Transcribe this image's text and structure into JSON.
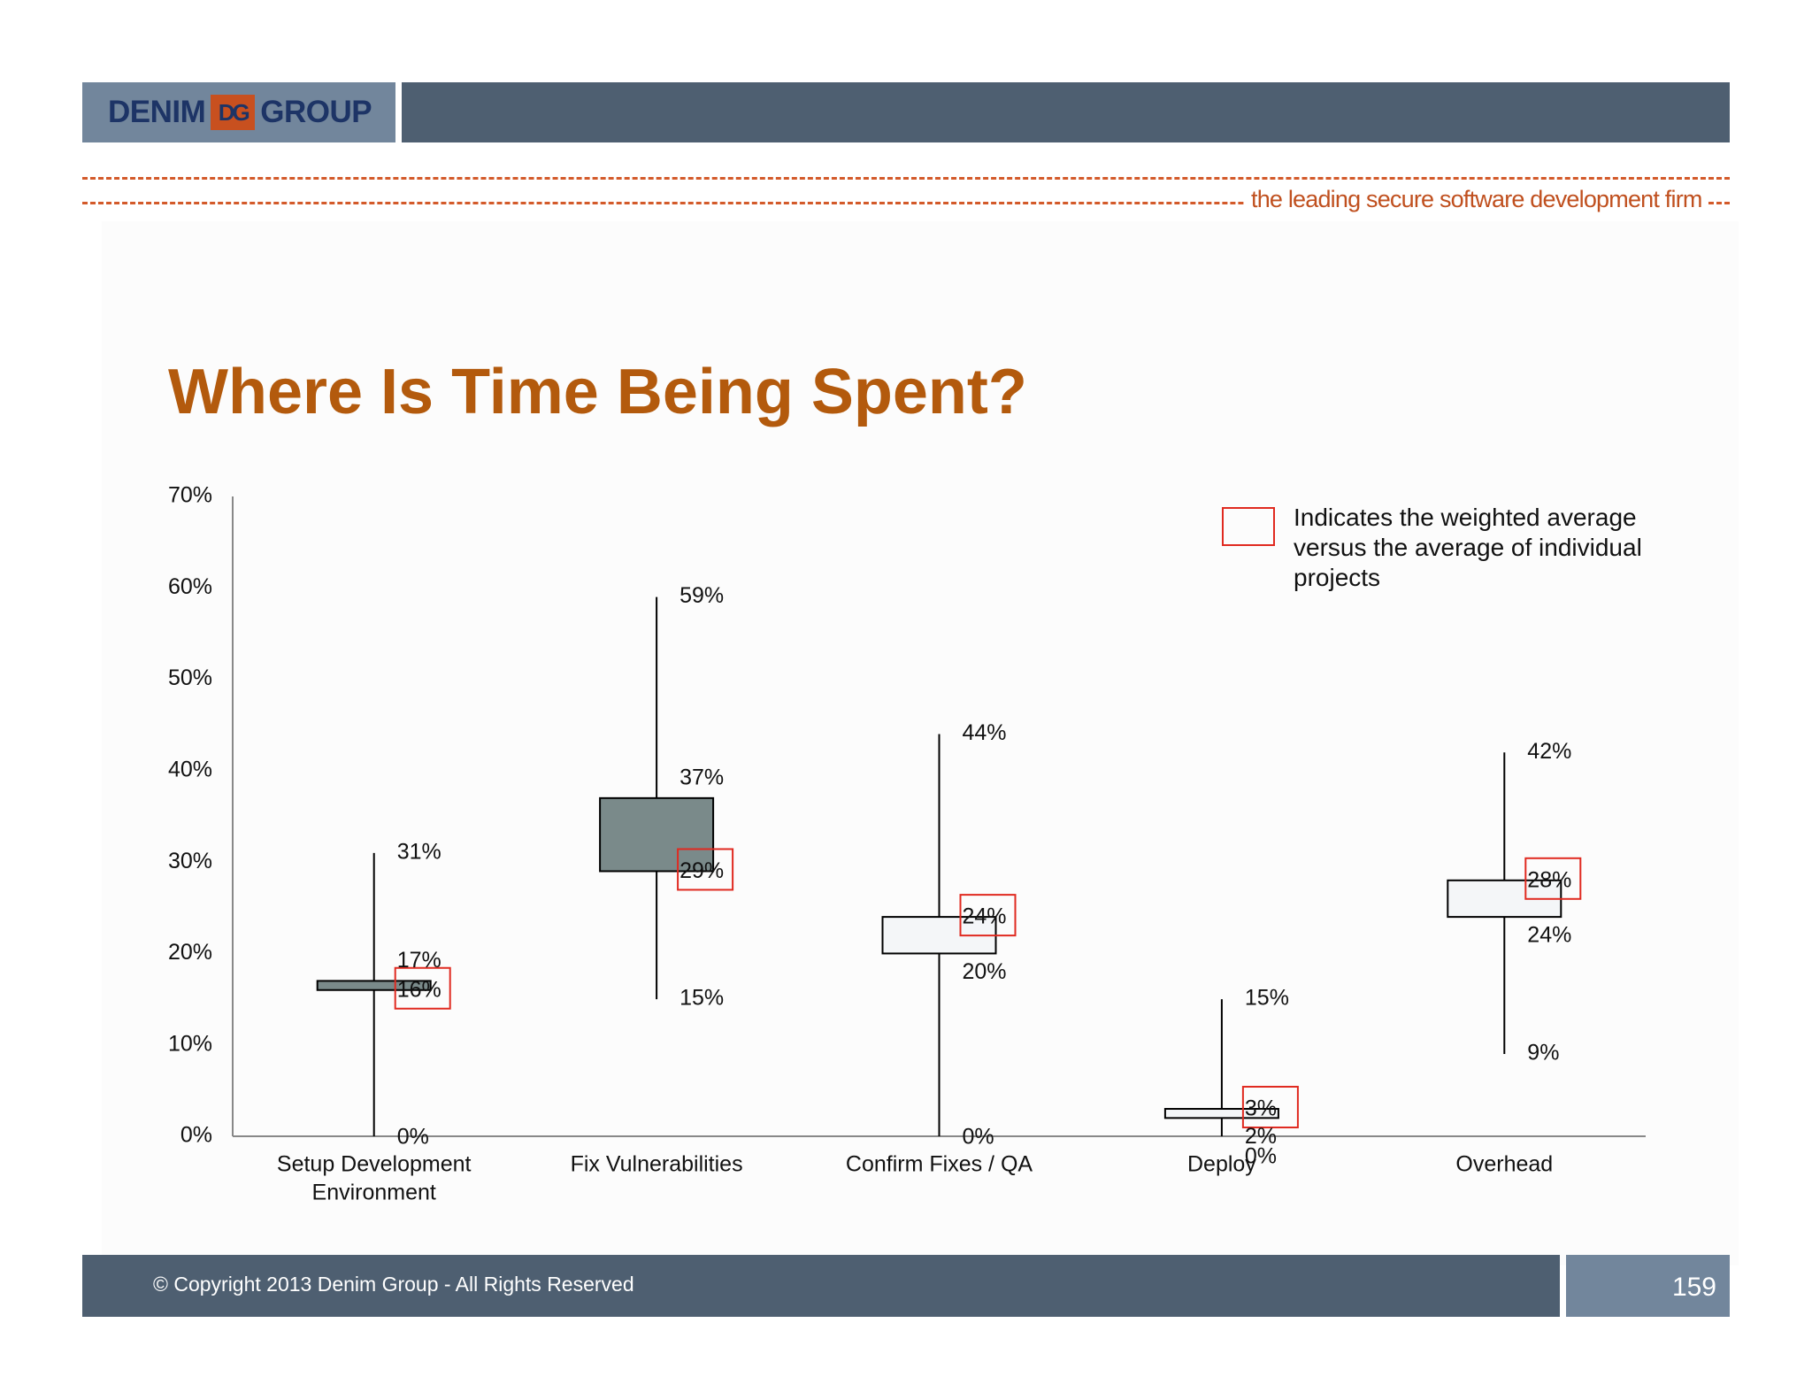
{
  "header": {
    "logo_left": "DENIM",
    "logo_mark": "DG",
    "logo_right": "GROUP",
    "tagline": "the leading secure software development firm"
  },
  "title": "Where Is Time Being Spent?",
  "legend": {
    "text": "Indicates the weighted average versus the average of individual projects"
  },
  "footer": {
    "copyright": "© Copyright 2013  Denim Group - All Rights Reserved",
    "page_number": "159"
  },
  "colors": {
    "brand_orange": "#b35a0d",
    "header_dark": "#4e5f71",
    "header_light": "#72869c",
    "box_dark": "#7a8a8a",
    "box_light": "#f4f6f8",
    "highlight_red": "#e02a20"
  },
  "chart_data": {
    "type": "box",
    "title": "Where Is Time Being Spent?",
    "xlabel": "",
    "ylabel": "",
    "ylim": [
      0,
      70
    ],
    "yticks": [
      "0%",
      "10%",
      "20%",
      "30%",
      "40%",
      "50%",
      "60%",
      "70%"
    ],
    "ytick_values": [
      0,
      10,
      20,
      30,
      40,
      50,
      60,
      70
    ],
    "grid": false,
    "legend_position": "top-right",
    "categories": [
      {
        "name": [
          "Setup Development",
          "Environment"
        ],
        "min": 0,
        "max": 31,
        "box_low": 16,
        "box_high": 17,
        "weighted_avg": 16,
        "box_fill": "dark",
        "labels": {
          "max": "31%",
          "top": "17%",
          "weighted": "16%",
          "min": "0%"
        }
      },
      {
        "name": [
          "Fix Vulnerabilities"
        ],
        "min": 15,
        "max": 59,
        "box_low": 29,
        "box_high": 37,
        "weighted_avg": 29,
        "box_fill": "dark",
        "labels": {
          "max": "59%",
          "top": "37%",
          "weighted": "29%",
          "min": "15%"
        }
      },
      {
        "name": [
          "Confirm Fixes / QA"
        ],
        "min": 0,
        "max": 44,
        "box_low": 20,
        "box_high": 24,
        "weighted_avg": 24,
        "box_fill": "light",
        "labels": {
          "max": "44%",
          "weighted": "24%",
          "bottom": "20%",
          "min": "0%"
        }
      },
      {
        "name": [
          "Deploy"
        ],
        "min": 0,
        "max": 15,
        "box_low": 2,
        "box_high": 3,
        "weighted_avg": 3,
        "box_fill": "light",
        "labels": {
          "max": "15%",
          "weighted": "3%",
          "bottom": "2%",
          "min": "0%"
        }
      },
      {
        "name": [
          "Overhead"
        ],
        "min": 9,
        "max": 42,
        "box_low": 24,
        "box_high": 28,
        "weighted_avg": 28,
        "box_fill": "light",
        "labels": {
          "max": "42%",
          "weighted": "28%",
          "bottom": "24%",
          "min": "9%"
        }
      }
    ]
  }
}
